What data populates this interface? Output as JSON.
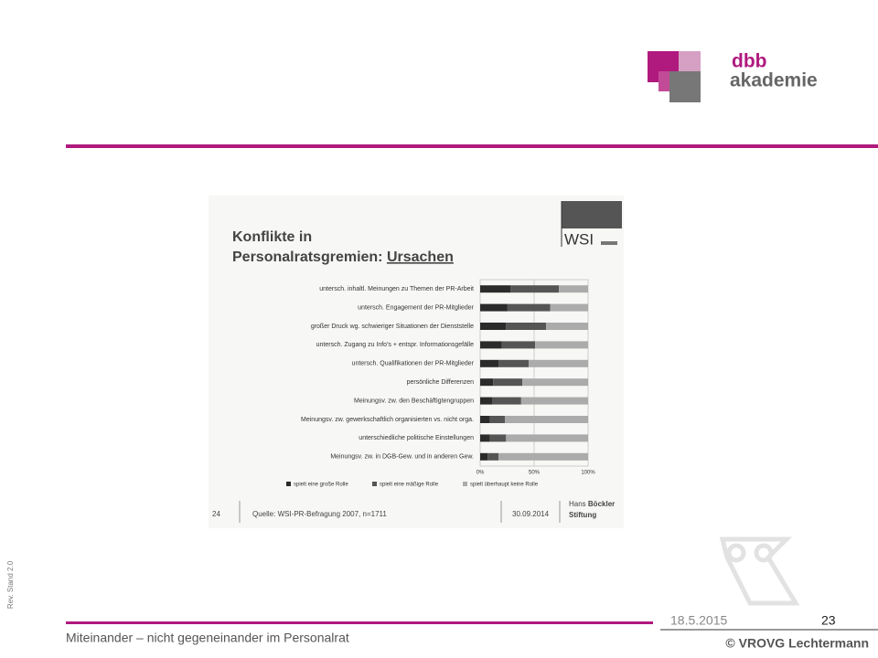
{
  "slide": {
    "logo_top": "dbb",
    "logo_bottom": "akademie",
    "revision": "Rev. Stand 2.0",
    "footer": "Miteinander – nicht gegeneinander im Personalrat",
    "date": "18.5.2015",
    "page": "23",
    "copyright": "© VROVG Lechtermann"
  },
  "source_box": {
    "logo": "WSI",
    "number": "24",
    "source": "Quelle: WSI-PR-Befragung 2007, n=1711",
    "date": "30.09.2014",
    "brand_line1_a": "Hans ",
    "brand_line1_b": "Böckler",
    "brand_line2": "Stiftung"
  },
  "chart_data": {
    "type": "stacked-bar-horizontal",
    "title": [
      "Konflikte in",
      "Personalratsgremien: ",
      "Ursachen"
    ],
    "categories": [
      "untersch. inhaltl. Meinungen zu Themen der PR-Arbeit",
      "untersch. Engagement der PR-Mitglieder",
      "großer Druck wg. schwieriger Situationen der Dienststelle",
      "untersch. Zugang zu Info's + entspr. Informationsgefälle",
      "untersch. Qualifikationen der PR-Mitglieder",
      "persönliche Differenzen",
      "Meinungsv. zw. den Beschäftigtengruppen",
      "Meinungsv. zw. gewerkschaftlich organisierten vs. nicht orga.",
      "unterschiedliche politische Einstellungen",
      "Meinungsv. zw. in DGB-Gew. und in anderen Gew."
    ],
    "series": [
      {
        "name": "spielt eine große Rolle",
        "color": "#2b2b2b",
        "values": [
          28,
          25,
          24,
          20,
          17,
          12,
          11,
          9,
          9,
          7
        ]
      },
      {
        "name": "spielt eine mäßige Rolle",
        "color": "#555555",
        "values": [
          45,
          40,
          37,
          31,
          28,
          27,
          27,
          14,
          15,
          10
        ]
      },
      {
        "name": "spielt überhaupt keine Rolle",
        "color": "#ababab",
        "values": [
          27,
          35,
          39,
          49,
          55,
          61,
          62,
          77,
          76,
          83
        ]
      }
    ],
    "xlim": [
      0,
      100
    ],
    "xticks": [
      {
        "value": 0,
        "label": "0%"
      },
      {
        "value": 50,
        "label": "50%"
      },
      {
        "value": 100,
        "label": "100%"
      }
    ],
    "grid": true,
    "legend": "bottom"
  }
}
